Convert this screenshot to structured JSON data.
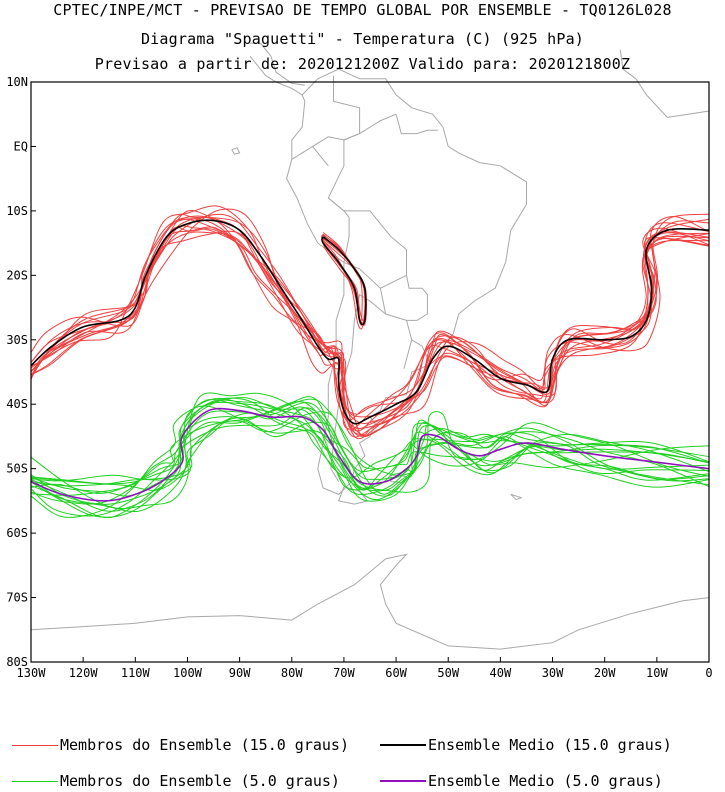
{
  "header": {
    "line1": "CPTEC/INPE/MCT - PREVISAO DE TEMPO GLOBAL POR ENSEMBLE - TQ0126L028",
    "line2": "Diagrama \"Spaguetti\" - Temperatura (C) (925 hPa)",
    "line3": "Previsao a partir de: 2020121200Z  Valido para: 2020121800Z"
  },
  "axes": {
    "lon_labels": [
      "130W",
      "120W",
      "110W",
      "100W",
      "90W",
      "80W",
      "70W",
      "60W",
      "50W",
      "40W",
      "30W",
      "20W",
      "10W",
      "0"
    ],
    "lat_labels": [
      "10N",
      "EQ",
      "10S",
      "20S",
      "30S",
      "40S",
      "50S",
      "60S",
      "70S",
      "80S"
    ]
  },
  "legend": {
    "member_15": "Membros do Ensemble (15.0 graus)",
    "mean_15": "Ensemble Medio (15.0 graus)",
    "member_5": "Membros do Ensemble (5.0 graus)",
    "mean_5": "Ensemble Medio (5.0 graus)"
  },
  "colors": {
    "member_15": "#f04040",
    "mean_15": "#000000",
    "member_5": "#20d020",
    "mean_5": "#9010c0",
    "coast": "#a8a8a8"
  },
  "contours": {
    "mean_15": [
      [
        -130,
        -34
      ],
      [
        -126,
        -31
      ],
      [
        -120,
        -28
      ],
      [
        -113,
        -27
      ],
      [
        -110,
        -25
      ],
      [
        -108,
        -20
      ],
      [
        -104,
        -14
      ],
      [
        -100,
        -12
      ],
      [
        -95,
        -11.5
      ],
      [
        -90,
        -13
      ],
      [
        -86,
        -17
      ],
      [
        -82,
        -22
      ],
      [
        -78,
        -27
      ],
      [
        -75,
        -31
      ],
      [
        -73,
        -33
      ],
      [
        -71,
        -33
      ],
      [
        -71,
        -37
      ],
      [
        -70,
        -41
      ],
      [
        -68,
        -43
      ],
      [
        -65,
        -42
      ],
      [
        -60,
        -40
      ],
      [
        -56,
        -38
      ],
      [
        -53,
        -33
      ],
      [
        -50,
        -31
      ],
      [
        -45,
        -33
      ],
      [
        -40,
        -36
      ],
      [
        -35,
        -37
      ],
      [
        -31,
        -38
      ],
      [
        -30,
        -33
      ],
      [
        -27,
        -30
      ],
      [
        -20,
        -30
      ],
      [
        -15,
        -29.5
      ],
      [
        -12,
        -27
      ],
      [
        -11,
        -22
      ],
      [
        -12,
        -16
      ],
      [
        -8,
        -13
      ],
      [
        0,
        -13
      ]
    ],
    "mean_15_andes": [
      [
        -74,
        -14
      ],
      [
        -71,
        -16
      ],
      [
        -68,
        -19
      ],
      [
        -66,
        -22
      ],
      [
        -66,
        -27
      ],
      [
        -67,
        -27
      ],
      [
        -68,
        -22
      ],
      [
        -71,
        -18
      ],
      [
        -74,
        -15
      ],
      [
        -74,
        -14
      ]
    ],
    "mean_5": [
      [
        -130,
        -52
      ],
      [
        -124,
        -54
      ],
      [
        -116,
        -55
      ],
      [
        -110,
        -54
      ],
      [
        -105,
        -52
      ],
      [
        -101,
        -49
      ],
      [
        -101,
        -45
      ],
      [
        -96,
        -41
      ],
      [
        -90,
        -41
      ],
      [
        -84,
        -42
      ],
      [
        -78,
        -42
      ],
      [
        -74,
        -44
      ],
      [
        -71,
        -48
      ],
      [
        -67,
        -52
      ],
      [
        -62,
        -52
      ],
      [
        -58,
        -50
      ],
      [
        -56,
        -48
      ],
      [
        -55,
        -45
      ],
      [
        -52,
        -45
      ],
      [
        -48,
        -47
      ],
      [
        -44,
        -48
      ],
      [
        -40,
        -47
      ],
      [
        -35,
        -46
      ],
      [
        -28,
        -47
      ],
      [
        -20,
        -48
      ],
      [
        -10,
        -49
      ],
      [
        0,
        -50
      ]
    ]
  }
}
